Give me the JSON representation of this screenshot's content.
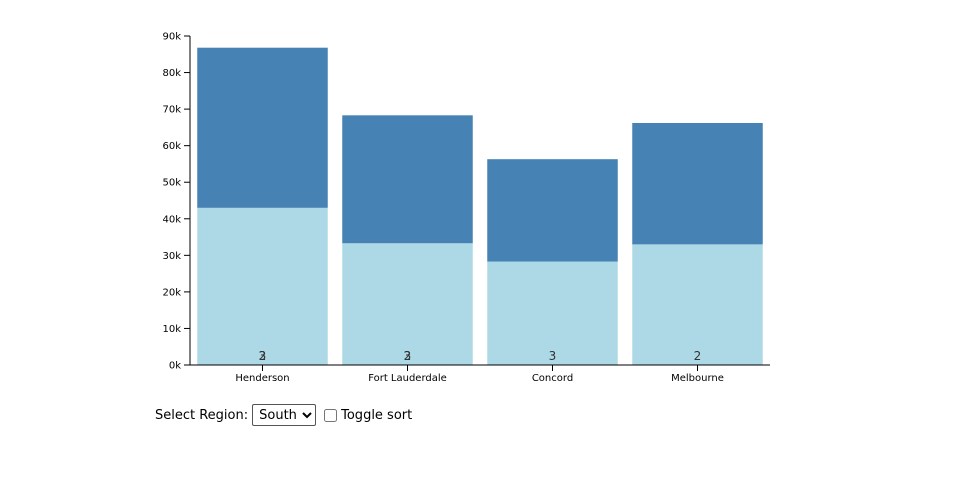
{
  "chart_data": {
    "type": "bar",
    "stacked": true,
    "categories": [
      "Henderson",
      "Fort Lauderdale",
      "Concord",
      "Melbourne"
    ],
    "series": [
      {
        "values": [
          43000,
          33300,
          28300,
          33000
        ]
      },
      {
        "values": [
          43800,
          35000,
          28000,
          33200
        ]
      }
    ],
    "count_labels": [
      "3",
      "3",
      "3",
      "2"
    ],
    "count_labels_overlap": [
      "2",
      "2",
      "",
      ""
    ],
    "y_ticks": [
      "0k",
      "10k",
      "20k",
      "30k",
      "40k",
      "50k",
      "60k",
      "70k",
      "80k",
      "90k"
    ],
    "ylim": [
      0,
      90000
    ],
    "grid": false,
    "colors": [
      "#add8e6",
      "#4682b4"
    ]
  },
  "controls": {
    "region_label": "Select Region:",
    "region_selected": "South",
    "sort_label": "Toggle sort"
  }
}
